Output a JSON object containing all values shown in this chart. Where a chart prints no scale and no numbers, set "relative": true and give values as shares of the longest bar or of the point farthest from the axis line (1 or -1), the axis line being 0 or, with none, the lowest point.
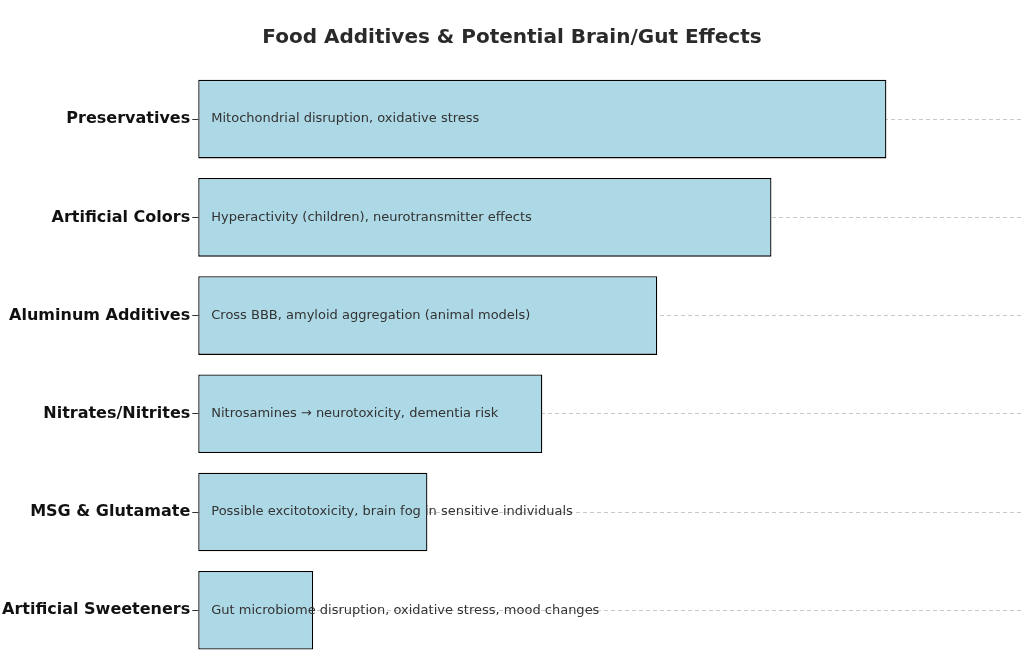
{
  "chart_data": {
    "type": "bar",
    "orientation": "horizontal",
    "relative": true,
    "title": "Food Additives & Potential Brain/Gut Effects",
    "categories": [
      "Preservatives",
      "Artificial Colors",
      "Aluminum Additives",
      "Nitrates/Nitrites",
      "MSG & Glutamate",
      "Artificial Sweeteners"
    ],
    "values": [
      1,
      0.833,
      0.667,
      0.5,
      0.333,
      0.167
    ],
    "color": "#add8e6",
    "annotations": [
      "Mitochondrial disruption, oxidative stress",
      "Hyperactivity (children), neurotransmitter effects",
      "Cross BBB, amyloid aggregation (animal models)",
      "Nitrosamines → neurotoxicity, dementia risk",
      "Possible excitotoxicity, brain fog in sensitive individuals",
      "Gut microbiome disruption, oxidative stress, mood changes"
    ],
    "grid": "y",
    "legend": false
  }
}
